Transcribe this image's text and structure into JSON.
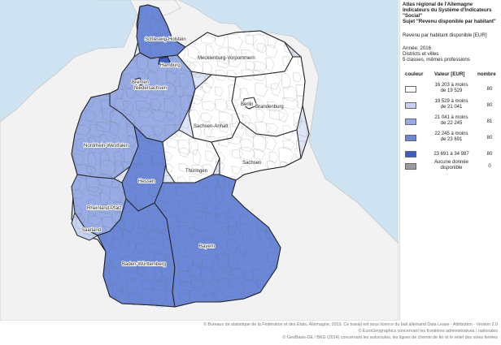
{
  "legend": {
    "title_lines": [
      "Atlas régional de l'Allemagne",
      "Indicateurs du Système d'Indicateurs",
      "\"Social\"",
      "Sujet \"Revenu disponible par habitant\""
    ],
    "variable": "Revenu par habitant disponible [EUR]",
    "meta_lines": [
      "Année: 2016",
      "Districts et villes",
      "5 classes, mêmes professions"
    ],
    "col_color": "couleur",
    "col_value": "Valeur [EUR]",
    "col_count": "nombre",
    "classes": [
      {
        "label_lines": [
          "16 203 à moins",
          "de 19 529"
        ],
        "count": "80",
        "color": "#ffffff"
      },
      {
        "label_lines": [
          "19 529 à moins",
          "de 21 041"
        ],
        "count": "80",
        "color": "#c6d3f0"
      },
      {
        "label_lines": [
          "21 041 à moins",
          "de 22 245"
        ],
        "count": "81",
        "color": "#97abe4"
      },
      {
        "label_lines": [
          "22 245 à moins",
          "de 23 691"
        ],
        "count": "80",
        "color": "#6b87d8"
      },
      {
        "label_lines": [
          "23 691 à 34 987"
        ],
        "count": "80",
        "color": "#3a5dc6"
      },
      {
        "label_lines": [
          "Aucune donnée",
          "disponible"
        ],
        "count": "0",
        "color": "#9a9a9a"
      }
    ]
  },
  "map": {
    "state_labels": [
      {
        "id": "schleswig-holstein",
        "text": "Schleswig-Holstein"
      },
      {
        "id": "hamburg",
        "text": "Hamburg"
      },
      {
        "id": "mecklenburg-vorpommern",
        "text": "Mecklenburg-Vorpommern"
      },
      {
        "id": "bremen",
        "text": "Bremen"
      },
      {
        "id": "niedersachsen",
        "text": "Niedersachsen"
      },
      {
        "id": "berlin",
        "text": "Berlin"
      },
      {
        "id": "brandenburg",
        "text": "Brandenburg"
      },
      {
        "id": "sachsen-anhalt",
        "text": "Sachsen-Anhalt"
      },
      {
        "id": "nordrhein-westfalen",
        "text": "Nordrhein-Westfalen"
      },
      {
        "id": "hessen",
        "text": "Hessen"
      },
      {
        "id": "thueringen",
        "text": "Thüringen"
      },
      {
        "id": "sachsen",
        "text": "Sachsen"
      },
      {
        "id": "rheinland-pfalz",
        "text": "Rheinland-Pfalz"
      },
      {
        "id": "saarland",
        "text": "Saarland"
      },
      {
        "id": "bayern",
        "text": "Bayern"
      },
      {
        "id": "baden-wuerttemberg",
        "text": "Baden-Württemberg"
      }
    ],
    "colors": {
      "sea": "#cde3f2",
      "neighbour_land": "#f2f2f2",
      "state_border": "#1f1f1f",
      "district_border": "#6a6a6a"
    }
  },
  "attribution": [
    "© Bureaux de statistique de la Fédération et des États, Allemagne, 2019. Ce travail est sous licence du bail allemand Data Lease - Attribution - Version 2.0",
    "© EuroGeographics concernant les frontières administratives / nationales",
    "© GeoBasis-DE / BKG (2014) concernant les autoroutes, les lignes de chemin de fer et le relief des voies ferrées"
  ]
}
